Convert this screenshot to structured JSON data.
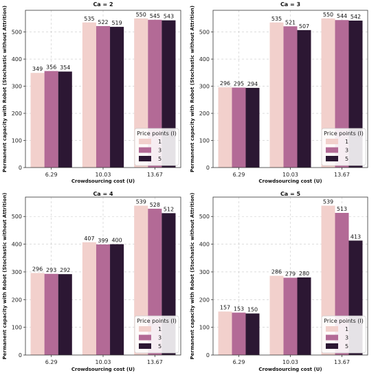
{
  "chart_data": [
    {
      "type": "bar",
      "title": "Ca = 2",
      "xlabel": "Crowdsourcing cost (U)",
      "ylabel": "Permanent capacity with Robot (Stochastic without Attrition)",
      "categories": [
        "6.29",
        "10.03",
        "13.67"
      ],
      "yticks": [
        "0",
        "100",
        "200",
        "300",
        "400",
        "500"
      ],
      "ylim": [
        0,
        580
      ],
      "grid": true,
      "legend": {
        "title": "Price points (I)",
        "placement": "lower-right"
      },
      "series": [
        {
          "name": "1",
          "color": "#f2d0cc",
          "values": [
            349,
            535,
            550
          ],
          "labels": [
            "349",
            "535",
            "550"
          ]
        },
        {
          "name": "3",
          "color": "#b36a96",
          "values": [
            356,
            522,
            545
          ],
          "labels": [
            "356",
            "522",
            "545"
          ]
        },
        {
          "name": "5",
          "color": "#2c1733",
          "values": [
            354,
            519,
            543
          ],
          "labels": [
            "354",
            "519",
            "543"
          ]
        }
      ]
    },
    {
      "type": "bar",
      "title": "Ca = 3",
      "xlabel": "Crowdsourcing cost (U)",
      "ylabel": "Permanent capacity with Robot (Stochastic without Attrition)",
      "categories": [
        "6.29",
        "10.03",
        "13.67"
      ],
      "yticks": [
        "0",
        "100",
        "200",
        "300",
        "400",
        "500"
      ],
      "ylim": [
        0,
        580
      ],
      "grid": true,
      "legend": {
        "title": "Price points (I)",
        "placement": "lower-right"
      },
      "series": [
        {
          "name": "1",
          "color": "#f2d0cc",
          "values": [
            296,
            535,
            550
          ],
          "labels": [
            "296",
            "535",
            "550"
          ]
        },
        {
          "name": "3",
          "color": "#b36a96",
          "values": [
            295,
            521,
            544
          ],
          "labels": [
            "295",
            "521",
            "544"
          ]
        },
        {
          "name": "5",
          "color": "#2c1733",
          "values": [
            294,
            507,
            542
          ],
          "labels": [
            "294",
            "507",
            "542"
          ]
        }
      ]
    },
    {
      "type": "bar",
      "title": "Ca = 4",
      "xlabel": "Crowdsourcing cost (U)",
      "ylabel": "Permanent capacity with Robot (Stochastic without Attrition)",
      "categories": [
        "6.29",
        "10.03",
        "13.67"
      ],
      "yticks": [
        "0",
        "100",
        "200",
        "300",
        "400",
        "500"
      ],
      "ylim": [
        0,
        570
      ],
      "grid": true,
      "legend": {
        "title": "Price points (I)",
        "placement": "lower-right"
      },
      "series": [
        {
          "name": "1",
          "color": "#f2d0cc",
          "values": [
            296,
            407,
            539
          ],
          "labels": [
            "296",
            "407",
            "539"
          ]
        },
        {
          "name": "3",
          "color": "#b36a96",
          "values": [
            293,
            399,
            528
          ],
          "labels": [
            "293",
            "399",
            "528"
          ]
        },
        {
          "name": "5",
          "color": "#2c1733",
          "values": [
            292,
            400,
            512
          ],
          "labels": [
            "292",
            "400",
            "512"
          ]
        }
      ]
    },
    {
      "type": "bar",
      "title": "Ca = 5",
      "xlabel": "Crowdsourcing cost (U)",
      "ylabel": "Permanent capacity with Robot (Stochastic without Attrition)",
      "categories": [
        "6.29",
        "10.03",
        "13.67"
      ],
      "yticks": [
        "0",
        "100",
        "200",
        "300",
        "400",
        "500"
      ],
      "ylim": [
        0,
        570
      ],
      "grid": true,
      "legend": {
        "title": "Price points (I)",
        "placement": "lower-right"
      },
      "series": [
        {
          "name": "1",
          "color": "#f2d0cc",
          "values": [
            157,
            286,
            539
          ],
          "labels": [
            "157",
            "286",
            "539"
          ]
        },
        {
          "name": "3",
          "color": "#b36a96",
          "values": [
            153,
            279,
            513
          ],
          "labels": [
            "153",
            "279",
            "513"
          ]
        },
        {
          "name": "5",
          "color": "#2c1733",
          "values": [
            150,
            280,
            413
          ],
          "labels": [
            "150",
            "280",
            "413"
          ]
        }
      ]
    }
  ]
}
